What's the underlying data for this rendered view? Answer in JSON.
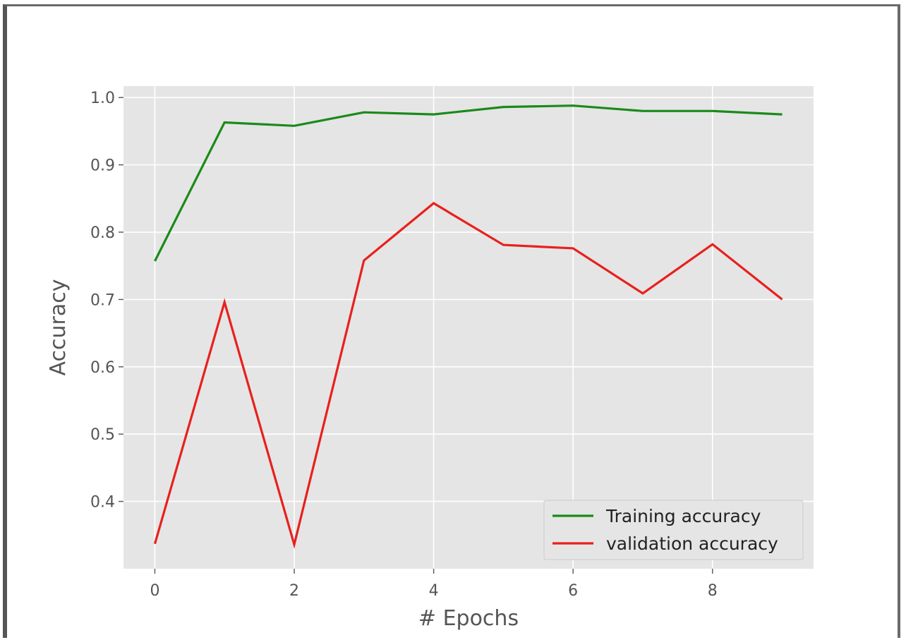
{
  "chart_data": {
    "type": "line",
    "title": "",
    "xlabel": "# Epochs",
    "ylabel": "Accuracy",
    "x": [
      0,
      1,
      2,
      3,
      4,
      5,
      6,
      7,
      8,
      9
    ],
    "xticks": [
      "0",
      "2",
      "4",
      "6",
      "8"
    ],
    "xtick_values": [
      0,
      2,
      4,
      6,
      8
    ],
    "yticks": [
      "0.4",
      "0.5",
      "0.6",
      "0.7",
      "0.8",
      "0.9",
      "1.0"
    ],
    "ytick_values": [
      0.4,
      0.5,
      0.6,
      0.7,
      0.8,
      0.9,
      1.0
    ],
    "xlim": [
      -0.45,
      9.45
    ],
    "ylim": [
      0.3,
      1.017
    ],
    "grid": true,
    "style": "ggplot",
    "legend_position": "lower-right",
    "series": [
      {
        "name": "Training accuracy",
        "color": "#1a8a1a",
        "values": [
          0.757,
          0.963,
          0.958,
          0.978,
          0.975,
          0.986,
          0.988,
          0.98,
          0.98,
          0.975
        ]
      },
      {
        "name": "validation accuracy",
        "color": "#e8201d",
        "values": [
          0.337,
          0.696,
          0.336,
          0.758,
          0.843,
          0.781,
          0.776,
          0.709,
          0.782,
          0.7
        ]
      }
    ]
  }
}
